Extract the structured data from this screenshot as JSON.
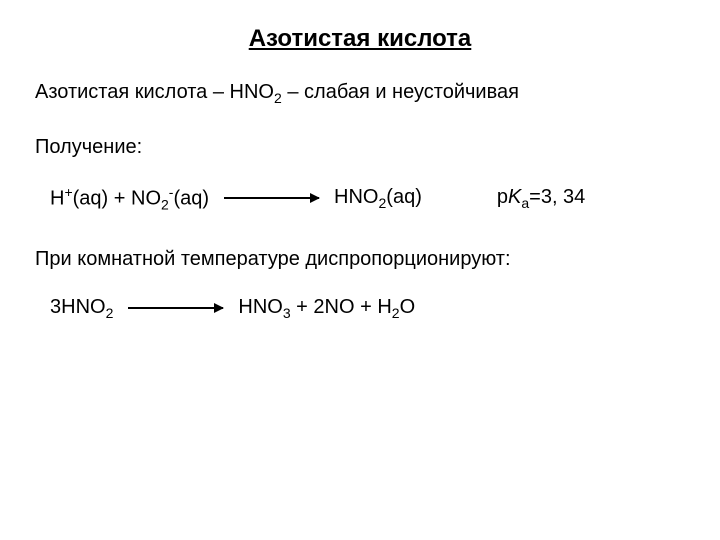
{
  "title": "Азотистая кислота",
  "subtitle_prefix": "Азотистая кислота – ",
  "subtitle_formula": "HNO",
  "subtitle_sub": "2",
  "subtitle_suffix": " – слабая и неустойчивая",
  "section_label": "Получение:",
  "eq1": {
    "left_h": "H",
    "left_h_sup": "+",
    "left_h_aq": "(aq) + NO",
    "left_no_sub": "2",
    "left_no_sup": "-",
    "left_no_aq": "(aq)",
    "right_prefix": "HNO",
    "right_sub": "2",
    "right_aq": "(aq)",
    "pka_p": "p",
    "pka_k": "K",
    "pka_sub": "a",
    "pka_val": "=3, 34"
  },
  "body_text": "При комнатной температуре диспропорционируют:",
  "eq2": {
    "left_coef": "3HNO",
    "left_sub": "2",
    "right_1": "HNO",
    "right_1_sub": "3",
    "right_plus": " + 2NO + H",
    "right_2_sub": "2",
    "right_o": "O"
  },
  "colors": {
    "background": "#ffffff",
    "text": "#000000"
  },
  "typography": {
    "title_fontsize": 24,
    "body_fontsize": 20,
    "font_family": "Arial"
  }
}
